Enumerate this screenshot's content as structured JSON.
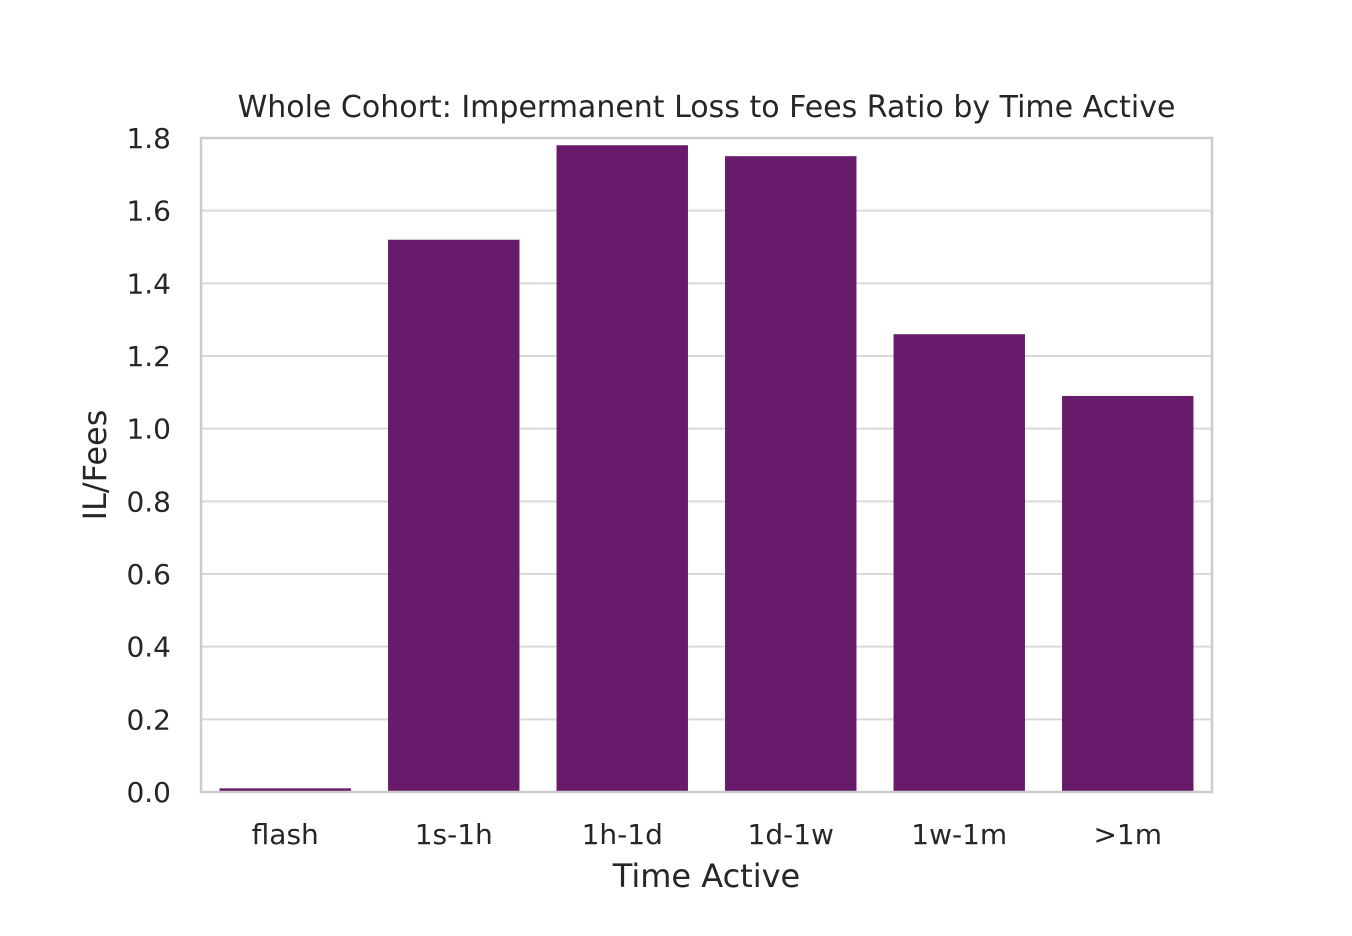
{
  "chart_data": {
    "type": "bar",
    "title": "Whole Cohort: Impermanent Loss to Fees Ratio by Time Active",
    "xlabel": "Time Active",
    "ylabel": "IL/Fees",
    "categories": [
      "flash",
      "1s-1h",
      "1h-1d",
      "1d-1w",
      "1w-1m",
      ">1m"
    ],
    "values": [
      0.01,
      1.52,
      1.78,
      1.75,
      1.26,
      1.09
    ],
    "ylim": [
      0,
      1.8
    ],
    "yticks": [
      "0.0",
      "0.2",
      "0.4",
      "0.6",
      "0.8",
      "1.0",
      "1.2",
      "1.4",
      "1.6",
      "1.8"
    ],
    "grid": "horizontal",
    "bar_color": "#671b6a",
    "grid_color": "#d9d9d9",
    "frame_color": "#cccccc"
  }
}
